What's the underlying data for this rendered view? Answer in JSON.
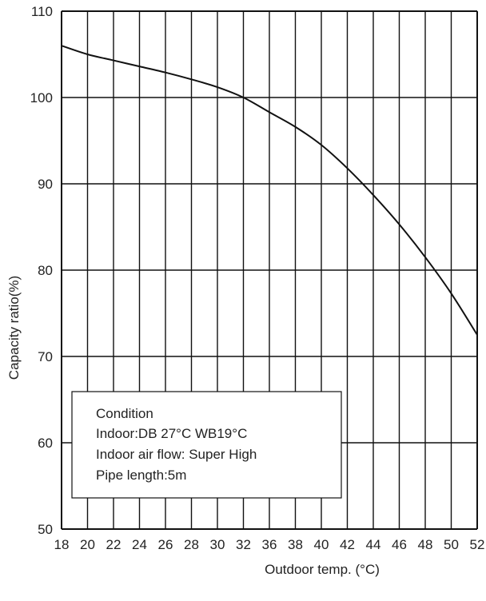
{
  "chart_data": {
    "type": "line",
    "xlabel": "Outdoor temp. (°C)",
    "ylabel": "Capacity ratio(%)",
    "x_ticks": [
      "18",
      "20",
      "22",
      "24",
      "26",
      "28",
      "30",
      "32",
      "36",
      "38",
      "40",
      "42",
      "44",
      "46",
      "48",
      "50",
      "52"
    ],
    "ylim": [
      50,
      110
    ],
    "y_ticks": [
      50,
      60,
      70,
      80,
      90,
      100,
      110
    ],
    "grid": true,
    "series": [
      {
        "x_index": [
          0,
          1,
          2,
          3,
          4,
          5,
          6,
          7,
          8,
          9,
          10,
          11,
          12,
          13,
          14,
          15,
          16
        ],
        "values": [
          106,
          105,
          104.3,
          103.6,
          102.9,
          102.1,
          101.2,
          100,
          98.3,
          96.6,
          94.5,
          91.8,
          88.7,
          85.3,
          81.5,
          77.3,
          72.5
        ]
      }
    ],
    "annotation": {
      "lines": [
        "Condition",
        "Indoor:DB 27°C  WB19°C",
        "Indoor air flow: Super High",
        "Pipe length:5m"
      ]
    }
  }
}
